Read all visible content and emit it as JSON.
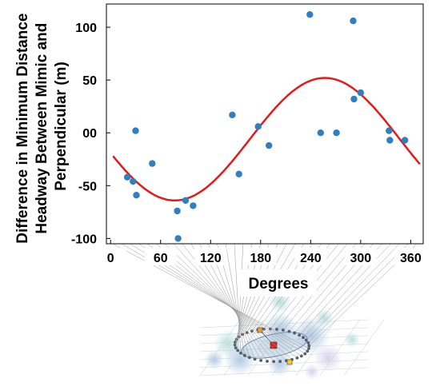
{
  "chart_data": {
    "type": "scatter",
    "xlabel": "Degrees",
    "ylabel_lines": [
      "Difference in Minimum Distance",
      "Headway Between Mimic and",
      "Perpendicular (m)"
    ],
    "xlim": [
      -5,
      375
    ],
    "ylim": [
      -105,
      122
    ],
    "x_ticks": [
      0,
      60,
      120,
      180,
      240,
      300,
      360
    ],
    "y_ticks": [
      -100,
      -50,
      0,
      50,
      100
    ],
    "y_tick_labels": [
      "-100",
      "-50",
      "00",
      "50",
      "100"
    ],
    "grid": false,
    "legend": "none",
    "colors": {
      "points": "#2f7fc1",
      "fit": "#e31a1c"
    },
    "points": [
      {
        "x": 20,
        "y": -42
      },
      {
        "x": 27,
        "y": -46
      },
      {
        "x": 30,
        "y": 2
      },
      {
        "x": 31,
        "y": -59
      },
      {
        "x": 50,
        "y": -29
      },
      {
        "x": 80,
        "y": -74
      },
      {
        "x": 81,
        "y": -100
      },
      {
        "x": 90,
        "y": -64
      },
      {
        "x": 99,
        "y": -69
      },
      {
        "x": 146,
        "y": 17
      },
      {
        "x": 154,
        "y": -39
      },
      {
        "x": 177,
        "y": 6
      },
      {
        "x": 190,
        "y": -12
      },
      {
        "x": 239,
        "y": 112
      },
      {
        "x": 252,
        "y": 0
      },
      {
        "x": 271,
        "y": 0
      },
      {
        "x": 291,
        "y": 106
      },
      {
        "x": 292,
        "y": 32
      },
      {
        "x": 300,
        "y": 38
      },
      {
        "x": 334,
        "y": 2
      },
      {
        "x": 335,
        "y": -7
      },
      {
        "x": 353,
        "y": -7
      }
    ],
    "fit_curve": {
      "type": "sinusoid",
      "x_range": [
        3,
        372
      ],
      "y": "-6 + 58*sin((x - 167) deg)",
      "description": "red fitted curve"
    }
  }
}
